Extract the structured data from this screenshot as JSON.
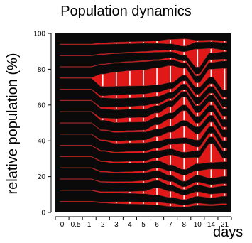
{
  "chart_data": {
    "type": "area",
    "title": "Population dynamics",
    "xlabel": "days",
    "ylabel": "relative population (%)",
    "ylim": [
      0,
      100
    ],
    "y_ticks": [
      0,
      20,
      40,
      60,
      80,
      100
    ],
    "categories": [
      "0",
      "0.5",
      "1",
      "2",
      "3",
      "4",
      "5",
      "6",
      "7",
      "8",
      "10",
      "14",
      "21"
    ],
    "grid": false,
    "colors": {
      "background": "#0a0a0a",
      "lineage_fill": "#e01818",
      "band_line": "#ffffff",
      "minor_line": "#8a2a2a"
    },
    "series": [
      {
        "values": [
          0.3,
          0.3,
          0.3,
          0.5,
          1.0,
          1.2,
          1.3,
          1.5,
          1.6,
          1.0,
          1.2,
          0.8,
          0.8
        ]
      },
      {
        "values": [
          0.3,
          0.3,
          0.3,
          0.5,
          0.8,
          1.0,
          1.5,
          4.0,
          3.5,
          2.5,
          2.5,
          2.0,
          1.6
        ]
      },
      {
        "values": [
          0.3,
          0.3,
          0.3,
          0.4,
          0.6,
          0.8,
          1.2,
          1.5,
          2.0,
          1.5,
          1.5,
          1.5,
          1.2
        ]
      },
      {
        "values": [
          0.3,
          0.3,
          0.3,
          0.5,
          0.5,
          0.8,
          1.0,
          1.5,
          2.5,
          3.5,
          2.5,
          5.0,
          4.0
        ]
      },
      {
        "values": [
          0.3,
          0.3,
          0.3,
          0.5,
          0.8,
          1.0,
          1.0,
          1.5,
          5.5,
          6.5,
          3.5,
          10.5,
          2.0
        ]
      },
      {
        "values": [
          0.3,
          0.3,
          0.3,
          0.5,
          0.5,
          0.8,
          1.0,
          1.2,
          2.5,
          5.0,
          2.0,
          2.0,
          1.5
        ]
      },
      {
        "values": [
          0.3,
          0.3,
          0.3,
          0.6,
          1.2,
          1.4,
          1.6,
          2.5,
          3.5,
          6.5,
          3.5,
          2.5,
          2.0
        ]
      },
      {
        "values": [
          0.3,
          0.3,
          0.3,
          0.4,
          0.6,
          0.8,
          1.0,
          2.5,
          4.0,
          5.5,
          2.0,
          2.0,
          1.5
        ]
      },
      {
        "values": [
          0.3,
          0.3,
          0.3,
          1.2,
          2.2,
          2.5,
          2.5,
          2.5,
          3.5,
          4.5,
          2.0,
          2.0,
          2.0
        ]
      },
      {
        "values": [
          0.3,
          0.3,
          0.3,
          0.8,
          1.5,
          1.5,
          2.0,
          1.2,
          1.2,
          1.0,
          1.0,
          1.0,
          1.0
        ]
      },
      {
        "values": [
          0.3,
          0.3,
          0.3,
          1.0,
          1.8,
          2.0,
          2.0,
          2.2,
          2.0,
          1.8,
          1.5,
          1.5,
          1.2
        ]
      },
      {
        "values": [
          0.3,
          0.3,
          0.3,
          7.0,
          8.0,
          8.5,
          9.0,
          9.5,
          9.5,
          4.0,
          2.5,
          4.5,
          12.0
        ]
      },
      {
        "values": [
          0.3,
          0.3,
          0.3,
          0.3,
          0.4,
          0.4,
          0.5,
          0.6,
          1.0,
          1.0,
          1.0,
          1.5,
          1.0
        ]
      },
      {
        "values": [
          0.3,
          0.3,
          0.3,
          0.4,
          0.5,
          0.5,
          0.6,
          0.8,
          1.0,
          2.0,
          10.0,
          2.5,
          1.0
        ]
      },
      {
        "values": [
          0.3,
          0.3,
          0.3,
          0.8,
          1.0,
          1.0,
          1.0,
          1.5,
          2.5,
          4.0,
          1.0,
          1.0,
          1.0
        ]
      }
    ]
  }
}
